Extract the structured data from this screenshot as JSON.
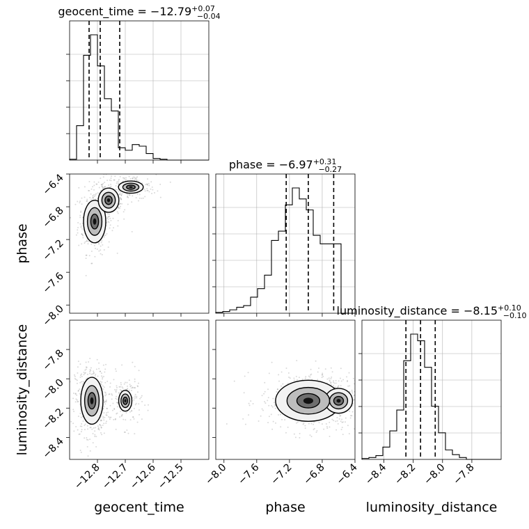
{
  "chart_data": {
    "type": "corner",
    "parameters": [
      "geocent_time",
      "phase",
      "luminosity_distance"
    ],
    "titles": [
      {
        "name": "geocent_time",
        "median": "-12.79",
        "plus": "0.07",
        "minus": "0.04"
      },
      {
        "name": "phase",
        "median": "-6.97",
        "plus": "0.31",
        "minus": "0.27"
      },
      {
        "name": "luminosity_distance",
        "median": "-8.15",
        "plus": "0.10",
        "minus": "0.10"
      }
    ],
    "axes": {
      "geocent_time": {
        "range": [
          -12.9,
          -12.4
        ],
        "ticks": [
          -12.8,
          -12.7,
          -12.6,
          -12.5
        ],
        "tick_labels": [
          "−12.8",
          "−12.7",
          "−12.6",
          "−12.5"
        ],
        "quantiles": [
          -12.83,
          -12.79,
          -12.72
        ]
      },
      "phase": {
        "range": [
          -8.1,
          -6.4
        ],
        "ticks": [
          -8.0,
          -7.6,
          -7.2,
          -6.8,
          -6.4
        ],
        "tick_labels": [
          "−8.0",
          "−7.6",
          "−7.2",
          "−6.8",
          "−6.4"
        ],
        "quantiles": [
          -7.24,
          -6.97,
          -6.66
        ]
      },
      "luminosity_distance": {
        "range": [
          -8.55,
          -7.6
        ],
        "ticks": [
          -8.4,
          -8.2,
          -8.0,
          -7.8
        ],
        "tick_labels": [
          "−8.4",
          "−8.2",
          "−8.0",
          "−7.8"
        ],
        "quantiles": [
          -8.25,
          -8.15,
          -8.05
        ]
      }
    },
    "histograms": [
      {
        "param": "geocent_time",
        "edges_start": -12.9,
        "bin_width": 0.025,
        "counts": [
          1,
          42,
          128,
          153,
          115,
          75,
          60,
          15,
          12,
          19,
          17,
          8,
          2,
          1,
          0,
          0,
          0,
          0,
          0,
          0
        ]
      },
      {
        "param": "phase",
        "edges_start": -8.1,
        "bin_width": 0.085,
        "counts": [
          1,
          2,
          4,
          7,
          9,
          19,
          29,
          45,
          86,
          97,
          128,
          148,
          135,
          122,
          92,
          82,
          82,
          82,
          0,
          0
        ]
      },
      {
        "param": "luminosity_distance",
        "edges_start": -8.55,
        "bin_width": 0.0475,
        "counts": [
          1,
          2,
          4,
          13,
          30,
          52,
          104,
          132,
          125,
          97,
          56,
          28,
          10,
          5,
          2,
          0,
          0,
          0,
          0,
          0
        ]
      }
    ],
    "joint_2d": [
      {
        "x": "geocent_time",
        "y": "phase",
        "density_peaks": [
          {
            "x": -12.81,
            "y": -6.98,
            "weight": 1.0,
            "sx": 0.02,
            "sy": 0.13
          },
          {
            "x": -12.76,
            "y": -6.72,
            "weight": 0.55,
            "sx": 0.025,
            "sy": 0.1
          },
          {
            "x": -12.68,
            "y": -6.56,
            "weight": 0.55,
            "sx": 0.03,
            "sy": 0.05
          }
        ]
      },
      {
        "x": "geocent_time",
        "y": "luminosity_distance",
        "density_peaks": [
          {
            "x": -12.82,
            "y": -8.15,
            "weight": 1.0,
            "sx": 0.02,
            "sy": 0.08
          },
          {
            "x": -12.7,
            "y": -8.15,
            "weight": 0.35,
            "sx": 0.02,
            "sy": 0.06
          }
        ]
      },
      {
        "x": "phase",
        "y": "luminosity_distance",
        "density_peaks": [
          {
            "x": -6.97,
            "y": -8.15,
            "weight": 1.0,
            "sx": 0.2,
            "sy": 0.07
          },
          {
            "x": -6.6,
            "y": -8.15,
            "weight": 0.5,
            "sx": 0.12,
            "sy": 0.06
          }
        ]
      }
    ],
    "xlabels": [
      "geocent_time",
      "phase",
      "luminosity_distance"
    ],
    "ylabels": [
      "",
      "phase",
      "luminosity_distance"
    ],
    "grid": true
  }
}
